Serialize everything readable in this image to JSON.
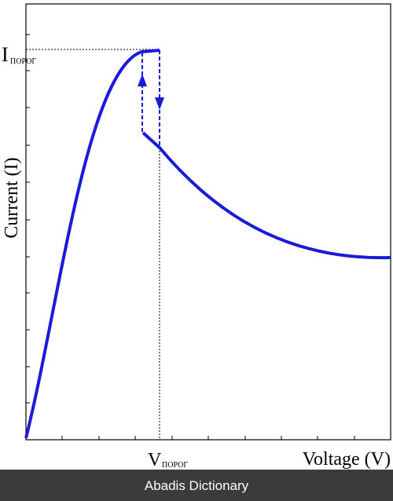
{
  "axes": {
    "y_label_main": "I",
    "y_label_sub": "ПОРОГ",
    "y_title": "Current (I)",
    "x_label_main": "V",
    "x_label_sub": "ПОРОГ",
    "x_title": "Voltage (V)"
  },
  "footer": {
    "text": "Abadis Dictionary"
  }
}
